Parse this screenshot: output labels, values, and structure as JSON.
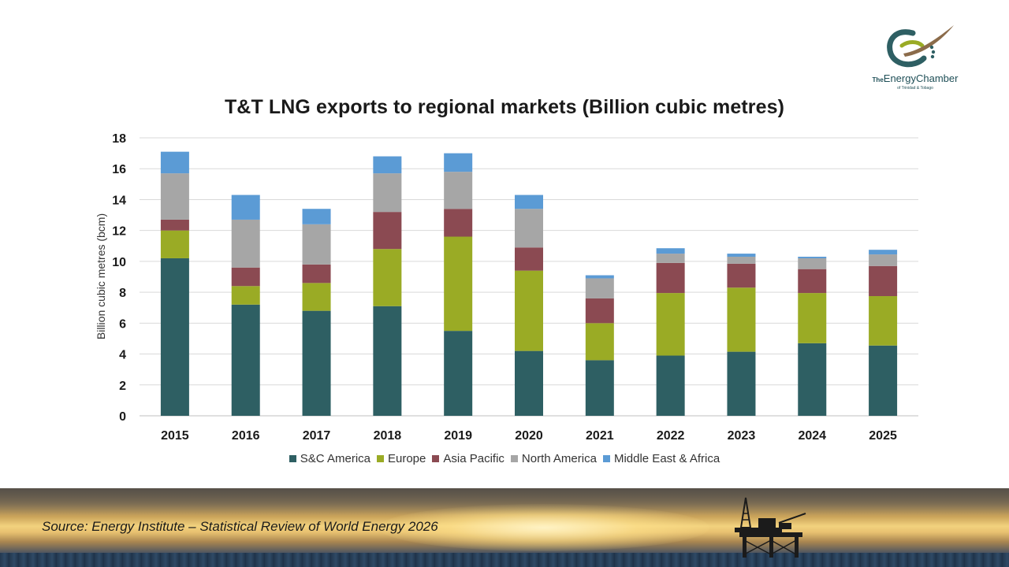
{
  "title": "T&T LNG exports to regional markets (Billion cubic metres)",
  "logo": {
    "the": "The",
    "energy": "Energy",
    "chamber": "Chamber",
    "subtitle": "of Trinidad & Tobago"
  },
  "source": "Source: Energy Institute – Statistical Review of World Energy 2026",
  "colors": {
    "sc_america": "#2e5f63",
    "europe": "#9aab25",
    "asia_pacific": "#8b4a52",
    "north_america": "#a6a6a6",
    "middle_east_africa": "#5b9bd5"
  },
  "chart_data": {
    "type": "bar",
    "stacked": true,
    "title": "T&T LNG exports to regional markets (Billion cubic metres)",
    "ylabel": "Billion cubic metres (bcm)",
    "xlabel": "",
    "ylim": [
      0,
      18
    ],
    "yticks": [
      0,
      2,
      4,
      6,
      8,
      10,
      12,
      14,
      16,
      18
    ],
    "grid": true,
    "legend_position": "bottom",
    "categories": [
      "2015",
      "2016",
      "2017",
      "2018",
      "2019",
      "2020",
      "2021",
      "2022",
      "2023",
      "2024",
      "2025"
    ],
    "series": [
      {
        "name": "S&C America",
        "values": [
          10.2,
          7.2,
          6.8,
          7.1,
          5.5,
          4.2,
          3.6,
          3.9,
          4.15,
          4.7,
          4.55
        ]
      },
      {
        "name": "Europe",
        "values": [
          1.8,
          1.2,
          1.8,
          3.7,
          6.1,
          5.2,
          2.4,
          4.05,
          4.15,
          3.25,
          3.2
        ]
      },
      {
        "name": "Asia Pacific",
        "values": [
          0.7,
          1.2,
          1.2,
          2.4,
          1.8,
          1.5,
          1.6,
          1.95,
          1.55,
          1.55,
          1.95
        ]
      },
      {
        "name": "North America",
        "values": [
          3.0,
          3.1,
          2.6,
          2.5,
          2.4,
          2.5,
          1.3,
          0.6,
          0.45,
          0.7,
          0.75
        ]
      },
      {
        "name": "Middle East & Africa",
        "values": [
          1.4,
          1.6,
          1.0,
          1.1,
          1.2,
          0.9,
          0.2,
          0.35,
          0.2,
          0.1,
          0.3
        ]
      }
    ]
  }
}
